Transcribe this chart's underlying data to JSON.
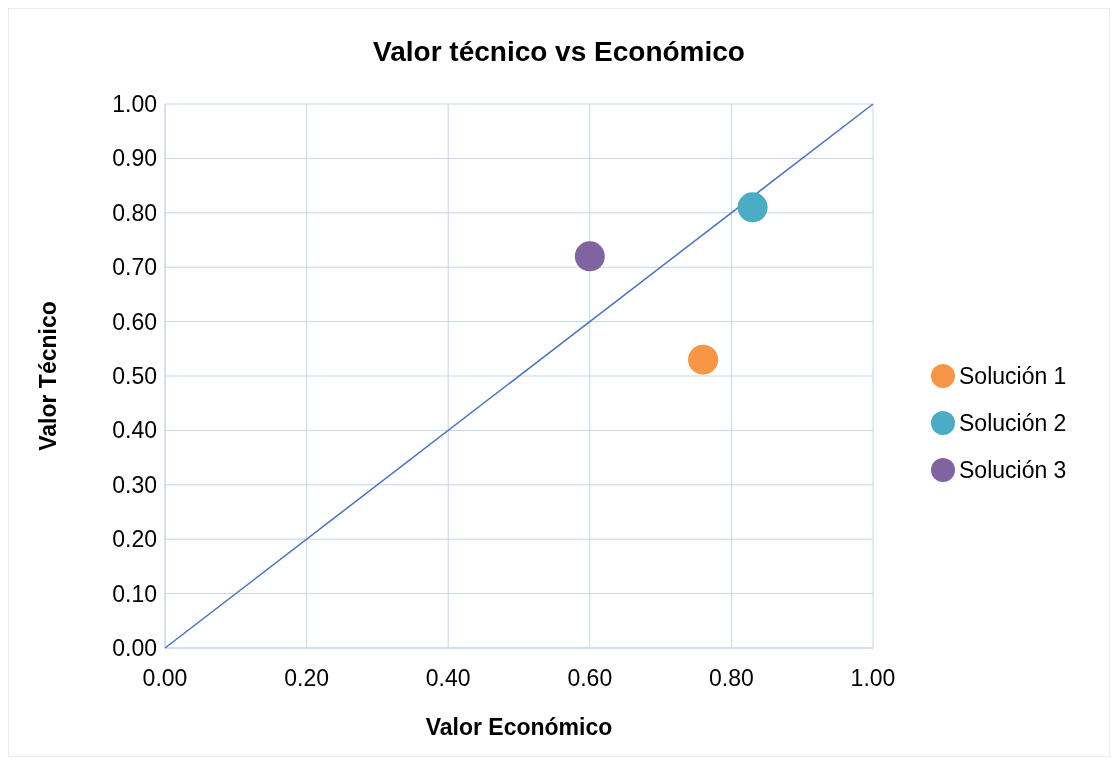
{
  "chart_data": {
    "type": "scatter",
    "title": "Valor técnico vs Económico",
    "xlabel": "Valor Económico",
    "ylabel": "Valor Técnico",
    "xlim": [
      0,
      1
    ],
    "ylim": [
      0,
      1
    ],
    "xticks": [
      {
        "value": 0,
        "label": "0.00"
      },
      {
        "value": 0.2,
        "label": "0.20"
      },
      {
        "value": 0.4,
        "label": "0.40"
      },
      {
        "value": 0.6,
        "label": "0.60"
      },
      {
        "value": 0.8,
        "label": "0.80"
      },
      {
        "value": 1,
        "label": "1.00"
      }
    ],
    "yticks": [
      {
        "value": 0,
        "label": "0.00"
      },
      {
        "value": 0.1,
        "label": "0.10"
      },
      {
        "value": 0.2,
        "label": "0.20"
      },
      {
        "value": 0.3,
        "label": "0.30"
      },
      {
        "value": 0.4,
        "label": "0.40"
      },
      {
        "value": 0.5,
        "label": "0.50"
      },
      {
        "value": 0.6,
        "label": "0.60"
      },
      {
        "value": 0.7,
        "label": "0.70"
      },
      {
        "value": 0.8,
        "label": "0.80"
      },
      {
        "value": 0.9,
        "label": "0.90"
      },
      {
        "value": 1,
        "label": "1.00"
      }
    ],
    "grid": true,
    "legend": "right",
    "marker": "circle",
    "series": [
      {
        "name": "Solución 1",
        "color": "#f79646",
        "x": [
          0.76
        ],
        "values": [
          0.53
        ]
      },
      {
        "name": "Solución 2",
        "color": "#4bacc6",
        "x": [
          0.83
        ],
        "values": [
          0.81
        ]
      },
      {
        "name": "Solución 3",
        "color": "#8064a2",
        "x": [
          0.6
        ],
        "values": [
          0.72
        ]
      },
      {
        "type": "line",
        "marker": "none",
        "color": "#4472c4",
        "x": [
          0,
          1
        ],
        "values": [
          0,
          1
        ]
      }
    ]
  }
}
